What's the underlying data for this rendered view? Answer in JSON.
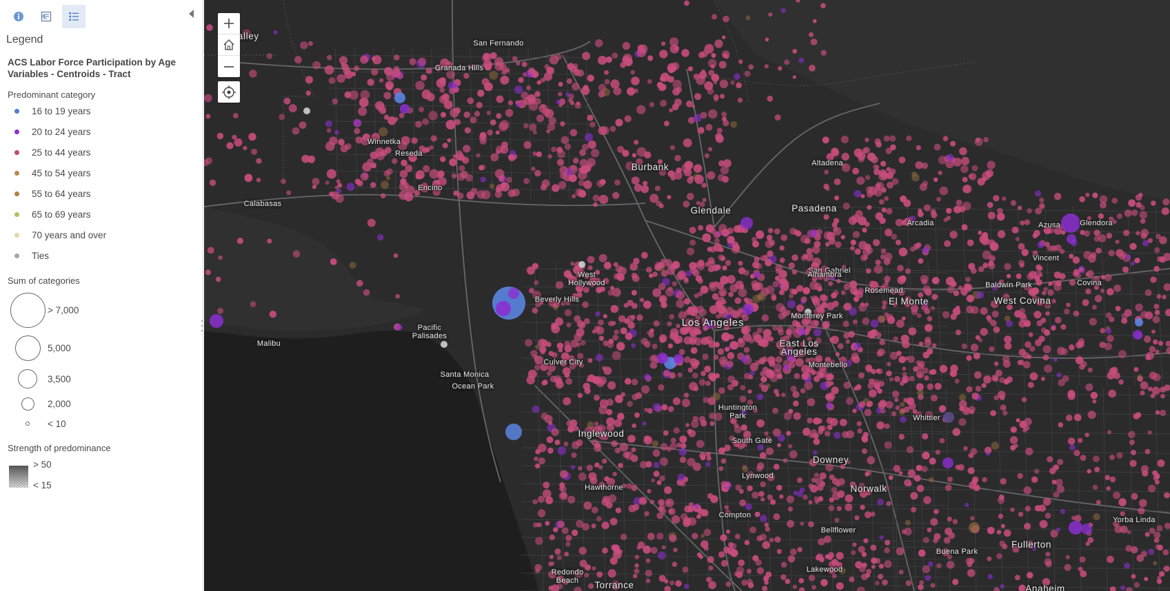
{
  "sidebar": {
    "tabs": [
      {
        "name": "info",
        "icon": "info-icon"
      },
      {
        "name": "content",
        "icon": "content-icon"
      },
      {
        "name": "legend",
        "icon": "legend-icon",
        "active": true
      }
    ],
    "collapse_icon": "caret-left-icon",
    "legend_heading": "Legend",
    "layer_title": "ACS Labor Force Participation by Age Variables - Centroids - Tract",
    "predominant_heading": "Predominant category",
    "categories": [
      {
        "label": "16 to 19 years",
        "color": "#4f7bd9"
      },
      {
        "label": "20 to 24 years",
        "color": "#8a2fc5"
      },
      {
        "label": "25 to 44 years",
        "color": "#c9466f"
      },
      {
        "label": "45 to 54 years",
        "color": "#b98a4c"
      },
      {
        "label": "55 to 64 years",
        "color": "#b3813f"
      },
      {
        "label": "65 to 69 years",
        "color": "#a9c55e"
      },
      {
        "label": "70 years and over",
        "color": "#e3d8a4"
      },
      {
        "label": "Ties",
        "color": "#a6a6a6"
      }
    ],
    "sum_heading": "Sum of categories",
    "sizes": [
      {
        "label": "> 7,000"
      },
      {
        "label": "5,000"
      },
      {
        "label": "3,500"
      },
      {
        "label": "2,000"
      },
      {
        "label": "< 10"
      }
    ],
    "strength_heading": "Strength of predominance",
    "strength_high": "> 50",
    "strength_low": "< 15"
  },
  "map": {
    "controls": {
      "zoom_in_icon": "plus-icon",
      "home_icon": "home-icon",
      "zoom_out_icon": "minus-icon",
      "locate_icon": "locate-icon"
    },
    "labels": [
      {
        "text": "San Fernando Valley (partial)",
        "display": "Valley"
      },
      {
        "text": "San Fernando"
      },
      {
        "text": "Granada Hills"
      },
      {
        "text": "Winnetka"
      },
      {
        "text": "Reseda"
      },
      {
        "text": "Encino"
      },
      {
        "text": "Calabasas"
      },
      {
        "text": "Burbank"
      },
      {
        "text": "Glendale"
      },
      {
        "text": "Pasadena"
      },
      {
        "text": "Altadena"
      },
      {
        "text": "Arcadia"
      },
      {
        "text": "Azusa"
      },
      {
        "text": "Glendora"
      },
      {
        "text": "West Hollywood"
      },
      {
        "text": "Beverly Hills"
      },
      {
        "text": "Pacific Palisades"
      },
      {
        "text": "Malibu"
      },
      {
        "text": "Los Angeles"
      },
      {
        "text": "Culver City"
      },
      {
        "text": "Santa Monica"
      },
      {
        "text": "Ocean Park"
      },
      {
        "text": "San Gabriel"
      },
      {
        "text": "Alhambra"
      },
      {
        "text": "Rosemead"
      },
      {
        "text": "El Monte"
      },
      {
        "text": "Baldwin Park"
      },
      {
        "text": "Vincent"
      },
      {
        "text": "Covina"
      },
      {
        "text": "West Covina"
      },
      {
        "text": "Monterey Park"
      },
      {
        "text": "East Los Angeles"
      },
      {
        "text": "Montebello"
      },
      {
        "text": "Huntington Park"
      },
      {
        "text": "Inglewood"
      },
      {
        "text": "South Gate"
      },
      {
        "text": "Whittier"
      },
      {
        "text": "Downey"
      },
      {
        "text": "Lynwood"
      },
      {
        "text": "Hawthorne"
      },
      {
        "text": "Norwalk"
      },
      {
        "text": "Compton"
      },
      {
        "text": "Bellflower"
      },
      {
        "text": "Buena Park"
      },
      {
        "text": "Fullerton"
      },
      {
        "text": "Yorba Linda"
      },
      {
        "text": "Lakewood"
      },
      {
        "text": "Redondo Beach"
      },
      {
        "text": "Torrance"
      },
      {
        "text": "Anaheim"
      }
    ]
  }
}
